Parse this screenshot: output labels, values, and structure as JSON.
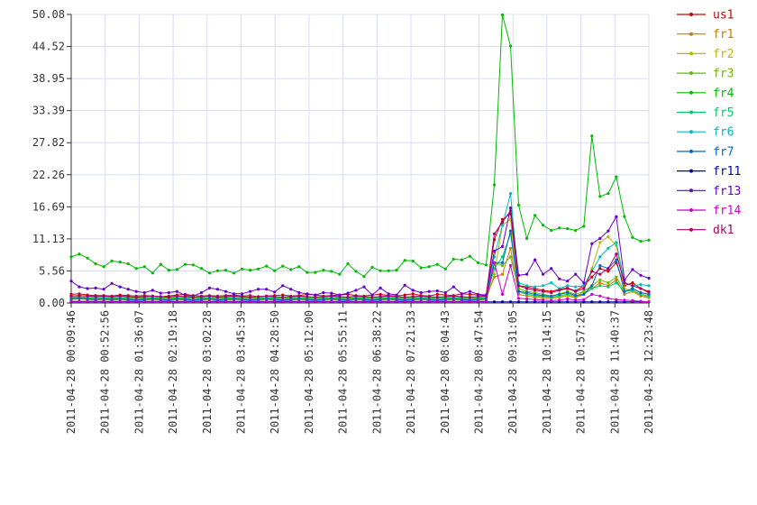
{
  "chart_data": {
    "type": "line",
    "title": "",
    "xlabel": "",
    "ylabel": "",
    "ylim": [
      0,
      50.08
    ],
    "yticks": [
      "0.00",
      "5.56",
      "11.13",
      "16.69",
      "22.26",
      "27.82",
      "33.39",
      "38.95",
      "44.52",
      "50.08"
    ],
    "xticks": [
      "2011-04-28 00:09:46",
      "2011-04-28 00:52:56",
      "2011-04-28 01:36:07",
      "2011-04-28 02:19:18",
      "2011-04-28 03:02:28",
      "2011-04-28 03:45:39",
      "2011-04-28 04:28:50",
      "2011-04-28 05:12:00",
      "2011-04-28 05:55:11",
      "2011-04-28 06:38:22",
      "2011-04-28 07:21:33",
      "2011-04-28 08:04:43",
      "2011-04-28 08:47:54",
      "2011-04-28 09:31:05",
      "2011-04-28 10:14:15",
      "2011-04-28 10:57:26",
      "2011-04-28 11:40:37",
      "2011-04-28 12:23:48"
    ],
    "grid": true,
    "legend_position": "right",
    "series": [
      {
        "name": "us1",
        "color": "#cc0000",
        "values": [
          1.5,
          1.6,
          1.4,
          1.3,
          1.3,
          1.2,
          1.4,
          1.3,
          1.2,
          1.3,
          1.2,
          1.1,
          1.2,
          1.4,
          1.5,
          1.3,
          1.2,
          1.3,
          1.2,
          1.3,
          1.4,
          1.2,
          1.3,
          1.1,
          1.2,
          1.3,
          1.4,
          1.2,
          1.3,
          1.5,
          1.4,
          1.2,
          1.3,
          1.4,
          1.5,
          1.3,
          1.2,
          1.4,
          1.5,
          1.3,
          1.2,
          1.4,
          1.6,
          1.3,
          1.2,
          1.5,
          1.4,
          1.3,
          1.6,
          1.5,
          1.4,
          1.3,
          11.0,
          14.5,
          15.5,
          3.0,
          2.8,
          2.5,
          2.2,
          2.0,
          2.4,
          2.6,
          2.1,
          3.0,
          4.5,
          6.0,
          5.5,
          7.0,
          3.0,
          3.5,
          2.5,
          1.8
        ]
      },
      {
        "name": "fr1",
        "color": "#cc7a00",
        "values": [
          0.8,
          0.9,
          0.8,
          0.7,
          0.8,
          0.7,
          0.8,
          0.7,
          0.6,
          0.7,
          0.8,
          0.7,
          0.6,
          0.8,
          0.7,
          0.6,
          0.7,
          0.8,
          0.6,
          0.7,
          0.8,
          0.7,
          0.6,
          0.7,
          0.8,
          0.7,
          0.6,
          0.7,
          0.8,
          0.7,
          0.6,
          0.7,
          0.8,
          0.7,
          0.6,
          0.8,
          0.7,
          0.6,
          0.7,
          0.8,
          0.7,
          0.6,
          0.7,
          0.8,
          0.7,
          0.6,
          0.7,
          0.8,
          0.7,
          0.6,
          0.7,
          0.8,
          4.5,
          5.0,
          9.5,
          1.5,
          1.2,
          1.0,
          0.9,
          0.8,
          1.0,
          1.2,
          0.9,
          1.5,
          2.5,
          3.5,
          3.0,
          4.0,
          1.5,
          2.0,
          1.2,
          0.9
        ]
      },
      {
        "name": "fr2",
        "color": "#b8b800",
        "values": [
          0.6,
          0.7,
          0.6,
          0.5,
          0.6,
          0.5,
          0.6,
          0.5,
          0.4,
          0.5,
          0.6,
          0.5,
          0.4,
          0.6,
          0.5,
          0.4,
          0.5,
          0.6,
          0.4,
          0.5,
          0.6,
          0.5,
          0.4,
          0.5,
          0.6,
          0.5,
          0.4,
          0.5,
          0.6,
          0.5,
          0.4,
          0.5,
          0.6,
          0.5,
          0.4,
          0.6,
          0.5,
          0.4,
          0.5,
          0.6,
          0.5,
          0.4,
          0.5,
          0.6,
          0.5,
          0.4,
          0.5,
          0.6,
          0.5,
          0.4,
          0.5,
          0.6,
          5.0,
          13.5,
          14.5,
          2.0,
          1.5,
          1.2,
          1.0,
          0.9,
          1.1,
          1.3,
          1.0,
          2.0,
          6.0,
          10.5,
          11.5,
          10.0,
          2.5,
          2.0,
          1.5,
          1.0
        ]
      },
      {
        "name": "fr3",
        "color": "#66bb00",
        "values": [
          1.0,
          1.1,
          1.0,
          0.9,
          1.0,
          0.9,
          1.0,
          0.9,
          0.8,
          0.9,
          1.0,
          0.9,
          0.8,
          1.0,
          0.9,
          0.8,
          0.9,
          1.0,
          0.8,
          0.9,
          1.0,
          0.9,
          0.8,
          0.9,
          1.0,
          0.9,
          0.8,
          0.9,
          1.0,
          0.9,
          0.8,
          0.9,
          1.0,
          0.9,
          0.8,
          1.0,
          0.9,
          0.8,
          0.9,
          1.0,
          0.9,
          0.8,
          0.9,
          1.0,
          0.9,
          0.8,
          0.9,
          1.0,
          0.9,
          0.8,
          0.9,
          1.0,
          7.0,
          6.5,
          8.0,
          2.5,
          2.0,
          1.8,
          1.5,
          1.2,
          1.6,
          2.0,
          1.5,
          2.0,
          3.0,
          4.0,
          3.5,
          4.5,
          2.0,
          2.5,
          1.8,
          1.5
        ]
      },
      {
        "name": "fr4",
        "color": "#00bb00",
        "values": [
          8.0,
          8.5,
          7.8,
          6.8,
          6.3,
          7.3,
          7.1,
          6.8,
          6.0,
          6.3,
          5.2,
          6.7,
          5.7,
          5.8,
          6.7,
          6.6,
          6.0,
          5.2,
          5.6,
          5.7,
          5.2,
          5.9,
          5.7,
          5.9,
          6.4,
          5.6,
          6.4,
          5.8,
          6.3,
          5.3,
          5.3,
          5.7,
          5.5,
          5.0,
          6.8,
          5.5,
          4.6,
          6.2,
          5.6,
          5.6,
          5.7,
          7.4,
          7.3,
          6.1,
          6.3,
          6.7,
          5.9,
          7.6,
          7.5,
          8.1,
          7.0,
          6.6,
          20.5,
          50.0,
          44.6,
          17.0,
          11.2,
          15.2,
          13.5,
          12.6,
          13.0,
          12.9,
          12.6,
          13.3,
          29.0,
          18.5,
          19.0,
          21.9,
          15.0,
          11.4,
          10.7,
          10.9
        ]
      },
      {
        "name": "fr5",
        "color": "#00cc66",
        "values": [
          0.9,
          1.0,
          0.9,
          0.8,
          0.9,
          0.8,
          0.9,
          0.8,
          0.7,
          0.8,
          0.9,
          0.8,
          0.7,
          0.9,
          0.8,
          0.7,
          0.8,
          0.9,
          0.7,
          0.8,
          0.9,
          0.8,
          0.7,
          0.8,
          0.9,
          0.8,
          0.7,
          0.8,
          0.9,
          0.8,
          0.7,
          0.8,
          0.9,
          0.8,
          0.7,
          0.9,
          0.8,
          0.7,
          0.8,
          0.9,
          0.8,
          0.7,
          0.8,
          0.9,
          0.8,
          0.7,
          0.8,
          0.9,
          0.8,
          0.7,
          0.8,
          0.9,
          6.0,
          8.0,
          12.0,
          2.0,
          1.5,
          1.3,
          1.2,
          1.0,
          1.3,
          1.5,
          1.2,
          1.5,
          2.5,
          3.0,
          2.8,
          3.5,
          2.0,
          2.2,
          1.5,
          1.2
        ]
      },
      {
        "name": "fr6",
        "color": "#00bbbb",
        "values": [
          1.2,
          1.3,
          1.2,
          1.1,
          1.2,
          1.1,
          1.2,
          1.1,
          1.0,
          1.1,
          1.2,
          1.1,
          1.0,
          1.2,
          1.1,
          1.0,
          1.1,
          1.2,
          1.0,
          1.1,
          1.2,
          1.1,
          1.0,
          1.1,
          1.2,
          1.1,
          1.0,
          1.1,
          1.2,
          1.1,
          1.0,
          1.1,
          1.2,
          1.1,
          1.0,
          1.2,
          1.1,
          1.0,
          1.1,
          1.2,
          1.1,
          1.0,
          1.1,
          1.2,
          1.1,
          1.0,
          1.1,
          1.2,
          1.1,
          1.0,
          1.1,
          1.2,
          8.0,
          13.5,
          19.0,
          3.5,
          3.0,
          2.8,
          3.0,
          3.5,
          2.5,
          3.0,
          2.8,
          3.0,
          5.5,
          8.0,
          9.5,
          10.5,
          3.5,
          3.0,
          3.2,
          3.0
        ]
      },
      {
        "name": "fr7",
        "color": "#0066cc",
        "values": [
          0.7,
          0.8,
          0.7,
          0.6,
          0.7,
          0.6,
          0.7,
          0.6,
          0.5,
          0.6,
          0.7,
          0.6,
          0.5,
          0.7,
          0.6,
          0.5,
          0.6,
          0.7,
          0.5,
          0.6,
          0.7,
          0.6,
          0.5,
          0.6,
          0.7,
          0.6,
          0.5,
          0.6,
          0.7,
          0.6,
          0.5,
          0.6,
          0.7,
          0.6,
          0.5,
          0.7,
          0.6,
          0.5,
          0.6,
          0.7,
          0.6,
          0.5,
          0.6,
          0.7,
          0.6,
          0.5,
          0.6,
          0.7,
          0.6,
          0.5,
          0.6,
          0.7,
          7.0,
          7.0,
          12.5,
          2.0,
          1.8,
          1.5,
          1.3,
          1.2,
          1.5,
          1.8,
          1.3,
          1.5,
          3.0,
          6.5,
          6.0,
          7.5,
          2.0,
          2.5,
          1.8,
          1.5
        ]
      },
      {
        "name": "fr11",
        "color": "#0000aa",
        "values": [
          0.2,
          0.2,
          0.2,
          0.2,
          0.2,
          0.2,
          0.2,
          0.2,
          0.2,
          0.2,
          0.2,
          0.2,
          0.2,
          0.2,
          0.2,
          0.2,
          0.2,
          0.2,
          0.2,
          0.2,
          0.2,
          0.2,
          0.2,
          0.2,
          0.2,
          0.2,
          0.2,
          0.2,
          0.2,
          0.2,
          0.2,
          0.2,
          0.2,
          0.2,
          0.2,
          0.2,
          0.2,
          0.2,
          0.2,
          0.2,
          0.2,
          0.2,
          0.2,
          0.2,
          0.2,
          0.2,
          0.2,
          0.2,
          0.2,
          0.2,
          0.2,
          0.2,
          0.2,
          0.2,
          0.2,
          0.2,
          0.2,
          0.2,
          0.2,
          0.2,
          0.2,
          0.2,
          0.2,
          0.2,
          0.2,
          0.2,
          0.2,
          0.2,
          0.2,
          0.2,
          0.2,
          0.2
        ]
      },
      {
        "name": "fr13",
        "color": "#6600cc",
        "values": [
          3.8,
          2.8,
          2.5,
          2.6,
          2.4,
          3.4,
          2.8,
          2.4,
          2.0,
          1.8,
          2.2,
          1.7,
          1.8,
          2.0,
          1.3,
          1.2,
          1.8,
          2.6,
          2.4,
          2.0,
          1.6,
          1.6,
          2.0,
          2.4,
          2.4,
          1.9,
          3.0,
          2.4,
          1.8,
          1.6,
          1.4,
          1.8,
          1.7,
          1.4,
          1.7,
          2.2,
          2.8,
          1.4,
          2.6,
          1.6,
          1.4,
          3.1,
          2.2,
          1.8,
          2.0,
          2.1,
          1.8,
          2.8,
          1.6,
          2.0,
          1.5,
          1.4,
          9.0,
          9.8,
          16.5,
          4.8,
          5.0,
          7.5,
          5.0,
          6.0,
          4.2,
          3.8,
          5.0,
          3.5,
          10.3,
          11.2,
          12.5,
          15.0,
          4.0,
          5.8,
          4.8,
          4.3
        ]
      },
      {
        "name": "fr14",
        "color": "#cc00cc",
        "values": [
          0.3,
          0.3,
          0.3,
          0.3,
          0.3,
          0.3,
          0.3,
          0.3,
          0.3,
          0.3,
          0.3,
          0.3,
          0.3,
          0.3,
          0.3,
          0.3,
          0.3,
          0.3,
          0.3,
          0.3,
          0.3,
          0.3,
          0.3,
          0.3,
          0.3,
          0.3,
          0.3,
          0.3,
          0.3,
          0.3,
          0.3,
          0.3,
          0.3,
          0.3,
          0.3,
          0.3,
          0.3,
          0.3,
          0.3,
          0.3,
          0.3,
          0.3,
          0.3,
          0.3,
          0.3,
          0.3,
          0.3,
          0.3,
          0.3,
          0.3,
          0.3,
          0.3,
          7.0,
          1.5,
          6.5,
          0.8,
          0.7,
          0.6,
          0.5,
          0.4,
          0.5,
          0.7,
          0.5,
          0.6,
          1.5,
          1.2,
          0.8,
          0.6,
          0.5,
          0.4,
          0.3,
          0.2
        ]
      },
      {
        "name": "dk1",
        "color": "#aa0066",
        "values": [
          1.2,
          1.3,
          1.2,
          1.1,
          1.2,
          1.1,
          1.2,
          1.1,
          1.0,
          1.1,
          1.2,
          1.1,
          1.0,
          1.2,
          1.1,
          1.0,
          1.1,
          1.2,
          1.0,
          1.1,
          1.2,
          1.1,
          1.0,
          1.1,
          1.2,
          1.1,
          1.0,
          1.1,
          1.2,
          1.1,
          1.0,
          1.1,
          1.2,
          1.1,
          1.0,
          1.2,
          1.1,
          1.0,
          1.1,
          1.2,
          1.1,
          1.0,
          1.1,
          1.2,
          1.1,
          1.0,
          1.1,
          1.2,
          1.1,
          1.0,
          1.1,
          1.2,
          12.0,
          14.0,
          16.0,
          3.0,
          2.5,
          2.2,
          2.0,
          1.8,
          2.2,
          2.5,
          2.0,
          2.5,
          5.5,
          5.0,
          6.0,
          8.5,
          3.5,
          3.0,
          2.5,
          2.0
        ]
      }
    ]
  }
}
